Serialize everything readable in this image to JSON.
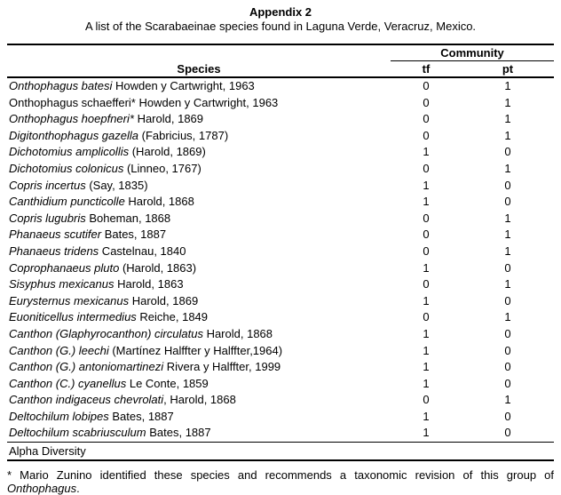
{
  "page": {
    "title": "Appendix 2",
    "subtitle": "A list of the Scarabaeinae species found in Laguna Verde, Veracruz, Mexico."
  },
  "table": {
    "species_header": "Species",
    "community_header": "Community",
    "tf_header": "tf",
    "pt_header": "pt",
    "footer_label": "Alpha Diversity",
    "rows": [
      {
        "name": "Onthophagus batesi",
        "rest": " Howden y Cartwright, 1963",
        "italic": true,
        "tf": "0",
        "pt": "1"
      },
      {
        "name": "Onthophagus schaefferi*",
        "rest": " Howden y Cartwright, 1963",
        "italic": false,
        "tf": "0",
        "pt": "1"
      },
      {
        "name": "Onthophagus hoepfneri*",
        "rest": " Harold, 1869",
        "italic": true,
        "tf": "0",
        "pt": "1"
      },
      {
        "name": "Digitonthophagus gazella",
        "rest": " (Fabricius, 1787)",
        "italic": true,
        "tf": "0",
        "pt": "1"
      },
      {
        "name": "Dichotomius amplicollis",
        "rest": " (Harold, 1869)",
        "italic": true,
        "tf": "1",
        "pt": "0"
      },
      {
        "name": "Dichotomius colonicus",
        "rest": " (Linneo, 1767)",
        "italic": true,
        "tf": "0",
        "pt": "1"
      },
      {
        "name": "Copris incertus",
        "rest": " (Say, 1835)",
        "italic": true,
        "tf": "1",
        "pt": "0"
      },
      {
        "name": "Canthidium puncticolle",
        "rest": " Harold, 1868",
        "italic": true,
        "tf": "1",
        "pt": "0"
      },
      {
        "name": "Copris lugubris",
        "rest": " Boheman, 1868",
        "italic": true,
        "tf": "0",
        "pt": "1"
      },
      {
        "name": "Phanaeus scutifer",
        "rest": " Bates, 1887",
        "italic": true,
        "tf": "0",
        "pt": "1"
      },
      {
        "name": "Phanaeus tridens",
        "rest": " Castelnau, 1840",
        "italic": true,
        "tf": "0",
        "pt": "1"
      },
      {
        "name": "Coprophanaeus pluto",
        "rest": " (Harold, 1863)",
        "italic": true,
        "tf": "1",
        "pt": "0"
      },
      {
        "name": "Sisyphus mexicanus",
        "rest": " Harold, 1863",
        "italic": true,
        "tf": "0",
        "pt": "1"
      },
      {
        "name": "Eurysternus mexicanus",
        "rest": " Harold, 1869",
        "italic": true,
        "tf": "1",
        "pt": "0"
      },
      {
        "name": "Euoniticellus intermedius",
        "rest": " Reiche, 1849",
        "italic": true,
        "tf": "0",
        "pt": "1"
      },
      {
        "name": "Canthon (Glaphyrocanthon) circulatus",
        "rest": " Harold, 1868",
        "italic": true,
        "tf": "1",
        "pt": "0"
      },
      {
        "name": "Canthon (G.) leechi",
        "rest": " (Martínez Halffter y Halffter,1964)",
        "italic": true,
        "tf": "1",
        "pt": "0"
      },
      {
        "name": "Canthon (G.) antoniomartinezi",
        "rest": " Rivera y Halffter, 1999",
        "italic": true,
        "tf": "1",
        "pt": "0"
      },
      {
        "name": "Canthon (C.) cyanellus",
        "rest": " Le Conte, 1859",
        "italic": true,
        "tf": "1",
        "pt": "0"
      },
      {
        "name": "Canthon indigaceus chevrolati",
        "rest": ", Harold, 1868",
        "italic": true,
        "tf": "0",
        "pt": "1"
      },
      {
        "name": "Deltochilum lobipes",
        "rest": " Bates, 1887",
        "italic": true,
        "tf": "1",
        "pt": "0"
      },
      {
        "name": "Deltochilum scabriusculum",
        "rest": " Bates, 1887",
        "italic": true,
        "tf": "1",
        "pt": "0"
      }
    ]
  },
  "footnote": {
    "before": "* Mario Zunino identified these species and recommends a taxonomic revision of this group of ",
    "italic_word": "Onthophagus",
    "after": "."
  }
}
